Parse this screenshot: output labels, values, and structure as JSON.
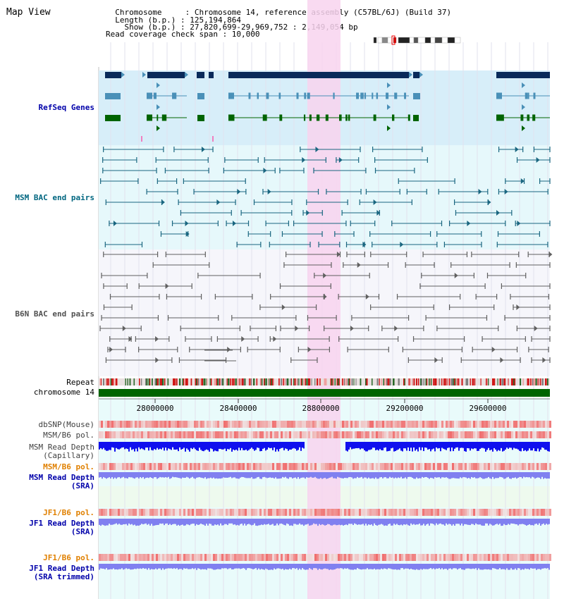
{
  "title": "Map View",
  "info": {
    "chromosome_line": "  Chromosome     : Chromosome 14, reference assembly (C57BL/6J) (Build 37)",
    "length_line": "  Length (b.p.) : 125,194,864",
    "show_line": "    Show (b.p.) : 27,820,699-29,969,752 : 2,149,054 bp",
    "coverage_line": "Read coverage check span : 10,000"
  },
  "tracks": {
    "refseq_genes": "RefSeq Genes",
    "msm_bac": "MSM BAC end pairs",
    "b6n_bac": "B6N BAC end pairs",
    "repeat": "Repeat",
    "chromosome": "chromosome 14",
    "dbsnp": "dbSNP(Mouse)",
    "msm_b6_pol": "MSM/B6 pol.",
    "msm_read_depth_cap_1": "MSM Read Depth",
    "msm_read_depth_cap_2": "(Capillary)",
    "msm_b6_pol_2": "MSM/B6 pol.",
    "msm_read_depth_sra_1": "MSM Read Depth",
    "msm_read_depth_sra_2": "(SRA)",
    "jf1_b6_pol": "JF1/B6 pol.",
    "jf1_read_depth_sra_1": "JF1 Read Depth",
    "jf1_read_depth_sra_2": "(SRA)",
    "jf1_b6_pol_2": "JF1/B6 pol.",
    "jf1_read_depth_trim_1": "JF1 Read Depth",
    "jf1_read_depth_trim_2": "(SRA trimmed)"
  },
  "axis_ticks": [
    "28000000",
    "28400000",
    "28800000",
    "29200000",
    "29600000"
  ],
  "colors": {
    "gene_navy": "#0a2a5a",
    "gene_teal": "#4a90b8",
    "gene_green": "#006400",
    "refseq_bg": "#d7eef9",
    "msm_bg": "#e6f8fb",
    "bac_teal": "#1a6680",
    "bac_gray": "#606060",
    "highlight": "#f8d4ef",
    "label_blue": "#0000aa",
    "label_teal": "#006680",
    "label_orange": "#e08000",
    "depth_blue": "#1010ee",
    "depth_light": "#8080f0",
    "pol_red": "#e83030"
  }
}
